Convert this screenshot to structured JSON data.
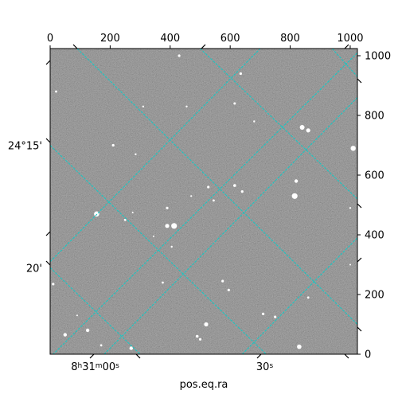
{
  "chart_data": {
    "type": "image",
    "title": "",
    "xlabel": "pos.eq.ra",
    "ylabel": "",
    "pixel_axes": {
      "x_range": [
        0,
        1024
      ],
      "y_range": [
        0,
        1024
      ],
      "x_ticks": [
        0,
        200,
        400,
        600,
        800,
        1000
      ],
      "y_ticks": [
        0,
        200,
        400,
        600,
        800,
        1000
      ],
      "x_tick_labels": [
        "0",
        "200",
        "400",
        "600",
        "800",
        "1000"
      ],
      "y_tick_labels": [
        "0",
        "200",
        "400",
        "600",
        "800",
        "1000"
      ],
      "x_ticks_position": "top",
      "y_ticks_position": "right"
    },
    "world_axes": {
      "ra_tick_labels": [
        {
          "label": "8h31m00s",
          "x": 150,
          "y": 0
        },
        {
          "label": "30s",
          "x": 715,
          "y": 0
        }
      ],
      "dec_tick_labels": [
        {
          "label": "24°15'",
          "x": 0,
          "y": 700
        },
        {
          "label": "20'",
          "x": 0,
          "y": 290
        }
      ]
    },
    "grid": true,
    "grid_color": "#18c7c4",
    "colormap": "gray",
    "background_level": "#6e6e6e",
    "grid_lines": {
      "ra": [
        {
          "points": [
            [
              80,
              1024
            ],
            [
              1024,
              940
            ]
          ]
        },
        {
          "points": [
            [
              0,
              700
            ],
            [
              1024,
              840
            ]
          ]
        },
        {
          "points": [
            [
              0,
              290
            ],
            [
              1024,
              440
            ]
          ]
        },
        {
          "points": [
            [
              0,
              -20
            ],
            [
              1024,
              70
            ]
          ]
        }
      ],
      "dec": []
    },
    "stars": [
      {
        "x": 430,
        "y": 1000,
        "mag": 1.6
      },
      {
        "x": 635,
        "y": 940,
        "mag": 1.6
      },
      {
        "x": 615,
        "y": 840,
        "mag": 1.5
      },
      {
        "x": 680,
        "y": 780,
        "mag": 1.2
      },
      {
        "x": 840,
        "y": 760,
        "mag": 3.0
      },
      {
        "x": 860,
        "y": 750,
        "mag": 2.6
      },
      {
        "x": 1010,
        "y": 690,
        "mag": 3.2
      },
      {
        "x": 285,
        "y": 670,
        "mag": 1.2
      },
      {
        "x": 210,
        "y": 700,
        "mag": 1.6
      },
      {
        "x": 820,
        "y": 580,
        "mag": 2.2
      },
      {
        "x": 815,
        "y": 530,
        "mag": 3.6
      },
      {
        "x": 615,
        "y": 565,
        "mag": 1.8
      },
      {
        "x": 640,
        "y": 545,
        "mag": 1.6
      },
      {
        "x": 527,
        "y": 560,
        "mag": 1.6
      },
      {
        "x": 545,
        "y": 515,
        "mag": 1.4
      },
      {
        "x": 390,
        "y": 490,
        "mag": 1.6
      },
      {
        "x": 155,
        "y": 470,
        "mag": 3.3
      },
      {
        "x": 250,
        "y": 450,
        "mag": 1.4
      },
      {
        "x": 390,
        "y": 430,
        "mag": 2.6
      },
      {
        "x": 413,
        "y": 430,
        "mag": 3.6
      },
      {
        "x": 405,
        "y": 360,
        "mag": 1.2
      },
      {
        "x": 575,
        "y": 245,
        "mag": 1.6
      },
      {
        "x": 375,
        "y": 240,
        "mag": 1.4
      },
      {
        "x": 595,
        "y": 215,
        "mag": 1.6
      },
      {
        "x": 710,
        "y": 135,
        "mag": 1.6
      },
      {
        "x": 750,
        "y": 125,
        "mag": 1.6
      },
      {
        "x": 520,
        "y": 100,
        "mag": 2.6
      },
      {
        "x": 490,
        "y": 60,
        "mag": 1.8
      },
      {
        "x": 500,
        "y": 50,
        "mag": 1.6
      },
      {
        "x": 125,
        "y": 80,
        "mag": 2.2
      },
      {
        "x": 50,
        "y": 65,
        "mag": 2.2
      },
      {
        "x": 830,
        "y": 25,
        "mag": 2.8
      },
      {
        "x": 270,
        "y": 20,
        "mag": 2.2
      },
      {
        "x": 10,
        "y": 235,
        "mag": 1.6
      },
      {
        "x": 860,
        "y": 190,
        "mag": 1.4
      },
      {
        "x": 1000,
        "y": 490,
        "mag": 1.2
      },
      {
        "x": 20,
        "y": 880,
        "mag": 1.4
      },
      {
        "x": 455,
        "y": 830,
        "mag": 1.2
      },
      {
        "x": 275,
        "y": 475,
        "mag": 1.0
      },
      {
        "x": 170,
        "y": 30,
        "mag": 1.4
      },
      {
        "x": 310,
        "y": 830,
        "mag": 1.2
      },
      {
        "x": 470,
        "y": 530,
        "mag": 1.1
      },
      {
        "x": 345,
        "y": 395,
        "mag": 1.0
      },
      {
        "x": 1000,
        "y": 300,
        "mag": 1.0
      },
      {
        "x": 90,
        "y": 130,
        "mag": 1.0
      }
    ]
  }
}
